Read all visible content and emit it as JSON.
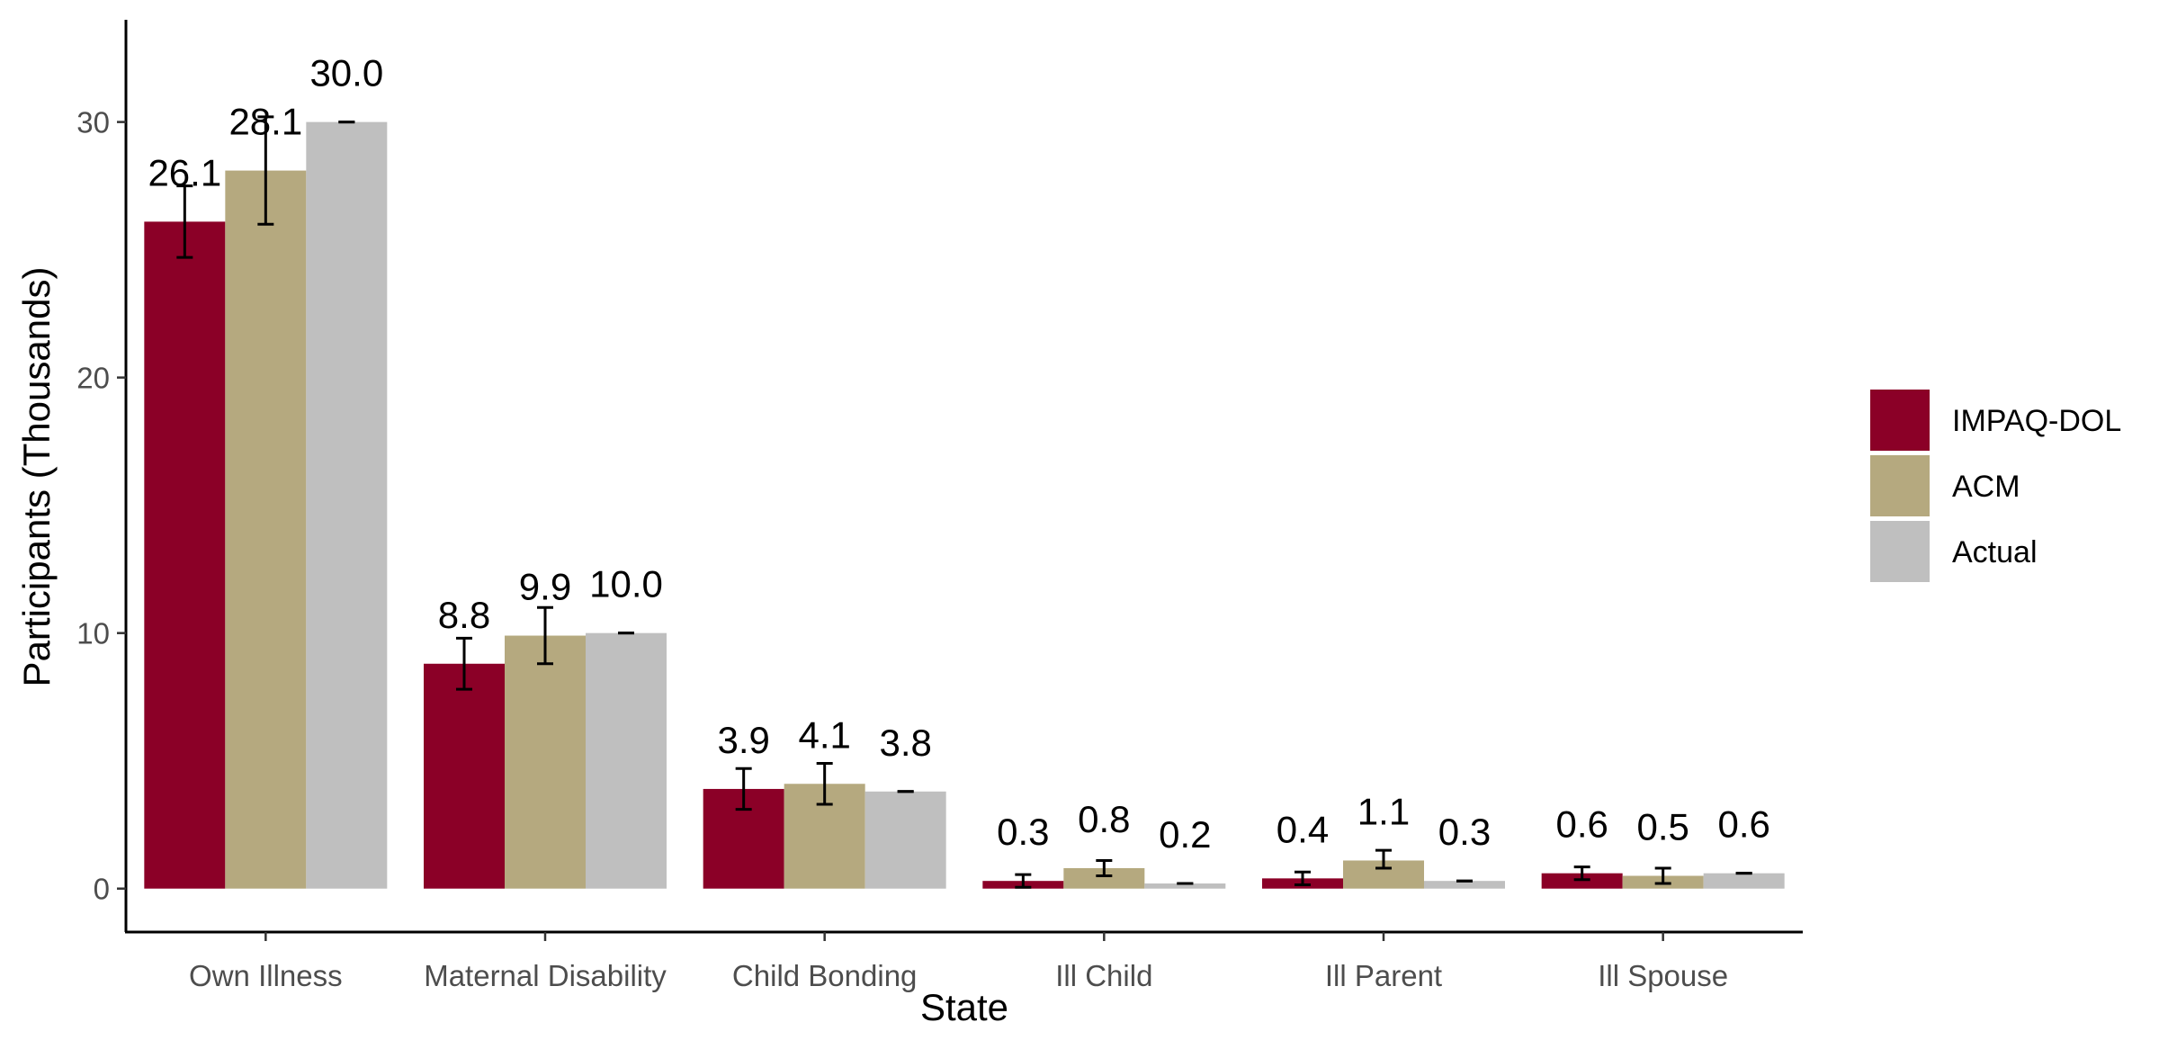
{
  "chart_data": {
    "type": "bar",
    "xlabel": "State",
    "ylabel": "Participants (Thousands)",
    "categories": [
      "Own Illness",
      "Maternal Disability",
      "Child Bonding",
      "Ill Child",
      "Ill Parent",
      "Ill Spouse"
    ],
    "yticks": [
      0,
      10,
      20,
      30
    ],
    "ylim": [
      -1.7,
      34
    ],
    "grid": false,
    "legend_position": "right",
    "series": [
      {
        "name": "IMPAQ-DOL",
        "color": "#8B0027",
        "values": [
          26.1,
          8.8,
          3.9,
          0.3,
          0.4,
          0.6
        ],
        "labels": [
          "26.1",
          "8.8",
          "3.9",
          "0.3",
          "0.4",
          "0.6"
        ],
        "error_low": [
          24.7,
          7.8,
          3.1,
          0.05,
          0.15,
          0.35
        ],
        "error_high": [
          27.5,
          9.8,
          4.7,
          0.55,
          0.65,
          0.85
        ]
      },
      {
        "name": "ACM",
        "color": "#B5A97F",
        "values": [
          28.1,
          9.9,
          4.1,
          0.8,
          1.1,
          0.5
        ],
        "labels": [
          "28.1",
          "9.9",
          "4.1",
          "0.8",
          "1.1",
          "0.5"
        ],
        "error_low": [
          26.0,
          8.8,
          3.3,
          0.5,
          0.8,
          0.2
        ],
        "error_high": [
          30.2,
          11.0,
          4.9,
          1.1,
          1.5,
          0.8
        ]
      },
      {
        "name": "Actual",
        "color": "#BFBFBF",
        "values": [
          30.0,
          10.0,
          3.8,
          0.2,
          0.3,
          0.6
        ],
        "labels": [
          "30.0",
          "10.0",
          "3.8",
          "0.2",
          "0.3",
          "0.6"
        ],
        "error_low": [
          30.0,
          10.0,
          3.8,
          0.2,
          0.3,
          0.6
        ],
        "error_high": [
          30.0,
          10.0,
          3.8,
          0.2,
          0.3,
          0.6
        ]
      }
    ]
  }
}
